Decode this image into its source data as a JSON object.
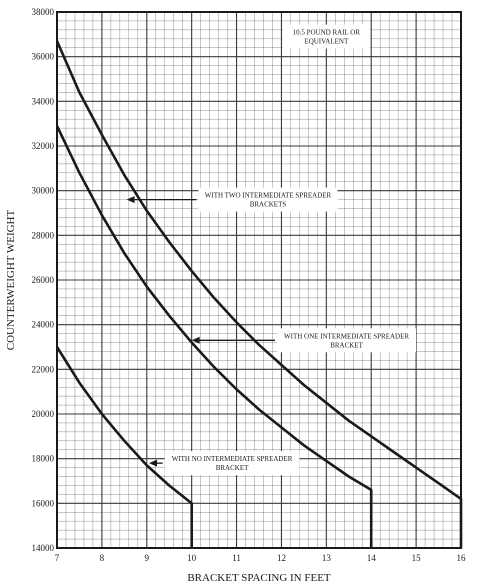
{
  "chart_data": {
    "type": "line",
    "xlabel": "BRACKET SPACING IN FEET",
    "ylabel": "COUNTERWEIGHT WEIGHT",
    "xlim": [
      7,
      16
    ],
    "ylim": [
      14000,
      38000
    ],
    "x_ticks": [
      "7",
      "8",
      "9",
      "10",
      "11",
      "12",
      "13",
      "14",
      "15",
      "16"
    ],
    "y_ticks": [
      "14000",
      "16000",
      "18000",
      "20000",
      "22000",
      "24000",
      "26000",
      "28000",
      "30000",
      "32000",
      "34000",
      "36000",
      "38000"
    ],
    "grid": true,
    "legend": "none",
    "colors": {
      "curve": "#1a1a1a",
      "grid": "#3a3a3a",
      "background": "#ffffff"
    },
    "series": [
      {
        "x": [
          7.0,
          7.5,
          8.0,
          8.5,
          9.0,
          9.5,
          10.0,
          10.5,
          11.0,
          11.5,
          12.0,
          12.5,
          13.0,
          13.5,
          14.0,
          14.5,
          15.0,
          15.5,
          16.0
        ],
        "y": [
          36700,
          34400,
          32500,
          30700,
          29100,
          27700,
          26400,
          25200,
          24100,
          23100,
          22200,
          21300,
          20500,
          19700,
          19000,
          18300,
          17600,
          16900,
          16200
        ],
        "end_drop_to": 14000
      },
      {
        "x": [
          7.0,
          7.5,
          8.0,
          8.5,
          9.0,
          9.5,
          10.0,
          10.5,
          11.0,
          11.5,
          12.0,
          12.5,
          13.0,
          13.5,
          14.0
        ],
        "y": [
          32900,
          30800,
          28900,
          27200,
          25700,
          24400,
          23200,
          22100,
          21100,
          20200,
          19400,
          18600,
          17900,
          17200,
          16600
        ],
        "end_drop_to": 14000
      },
      {
        "x": [
          7.0,
          7.5,
          8.0,
          8.5,
          9.0,
          9.5,
          10.0
        ],
        "y": [
          23000,
          21400,
          20000,
          18800,
          17700,
          16800,
          16000
        ],
        "end_drop_to": 14000
      }
    ],
    "annotations": [
      {
        "lines": [
          "10.5 POUND RAIL OR",
          "EQUIVALENT"
        ],
        "at": [
          13.0,
          36900
        ],
        "arrow_to": null
      },
      {
        "lines": [
          "WITH TWO INTERMEDIATE SPREADER",
          "BRACKETS"
        ],
        "at": [
          11.7,
          29600
        ],
        "arrow_to": [
          8.55,
          29600
        ]
      },
      {
        "lines": [
          "WITH ONE INTERMEDIATE SPREADER",
          "BRACKET"
        ],
        "at": [
          13.45,
          23300
        ],
        "arrow_to": [
          10.0,
          23300
        ]
      },
      {
        "lines": [
          "WITH NO INTERMEDIATE SPREADER",
          "BRACKET"
        ],
        "at": [
          10.9,
          17800
        ],
        "arrow_to": [
          9.05,
          17800
        ]
      }
    ]
  }
}
